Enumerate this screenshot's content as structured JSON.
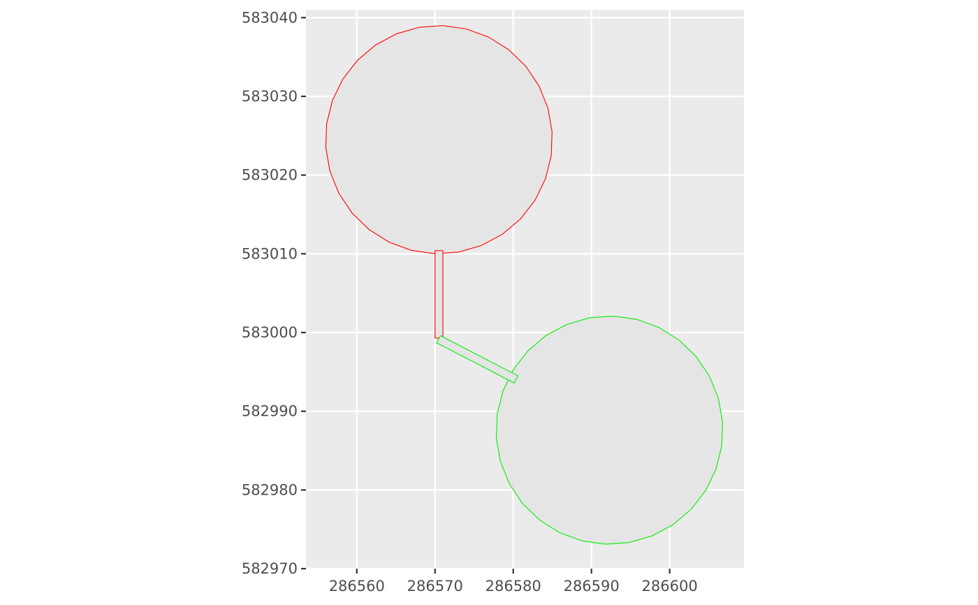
{
  "colors": {
    "panel_background": "#ebebeb",
    "grid_major": "#ffffff",
    "axis_tick": "#333333",
    "tick_text": "#4d4d4d",
    "polygon_fill": "#e5e5e5"
  },
  "chart_data": {
    "type": "map",
    "title": "",
    "xlabel": "",
    "ylabel": "",
    "xlim": [
      286553.5,
      286609.5
    ],
    "ylim": [
      582970,
      583041
    ],
    "x_ticks": [
      286560,
      286570,
      286580,
      286590,
      286600
    ],
    "y_ticks": [
      582970,
      582980,
      582990,
      583000,
      583010,
      583020,
      583030,
      583040
    ],
    "grid": true,
    "legend": "none",
    "features": [
      {
        "stroke": "#ff0000",
        "shape": "circle",
        "center": [
          286570.5,
          583024.5
        ],
        "radius": 14.5,
        "segments": 30
      },
      {
        "stroke": "#ff0000",
        "shape": "polygon",
        "coords": [
          [
            286570,
            583010.4
          ],
          [
            286571,
            583010.4
          ],
          [
            286571,
            582999.3
          ],
          [
            286570,
            582999.3
          ],
          [
            286570,
            583010.4
          ]
        ]
      },
      {
        "stroke": "#00ee00",
        "shape": "circle",
        "center": [
          286592.3,
          582987.6
        ],
        "radius": 14.5,
        "segments": 30
      },
      {
        "stroke": "#00ee00",
        "shape": "polygon",
        "coords": [
          [
            286570.7,
            582999.6
          ],
          [
            286580.6,
            582994.5
          ],
          [
            286580.1,
            582993.6
          ],
          [
            286570.2,
            582998.7
          ],
          [
            286570.7,
            582999.6
          ]
        ]
      }
    ]
  }
}
